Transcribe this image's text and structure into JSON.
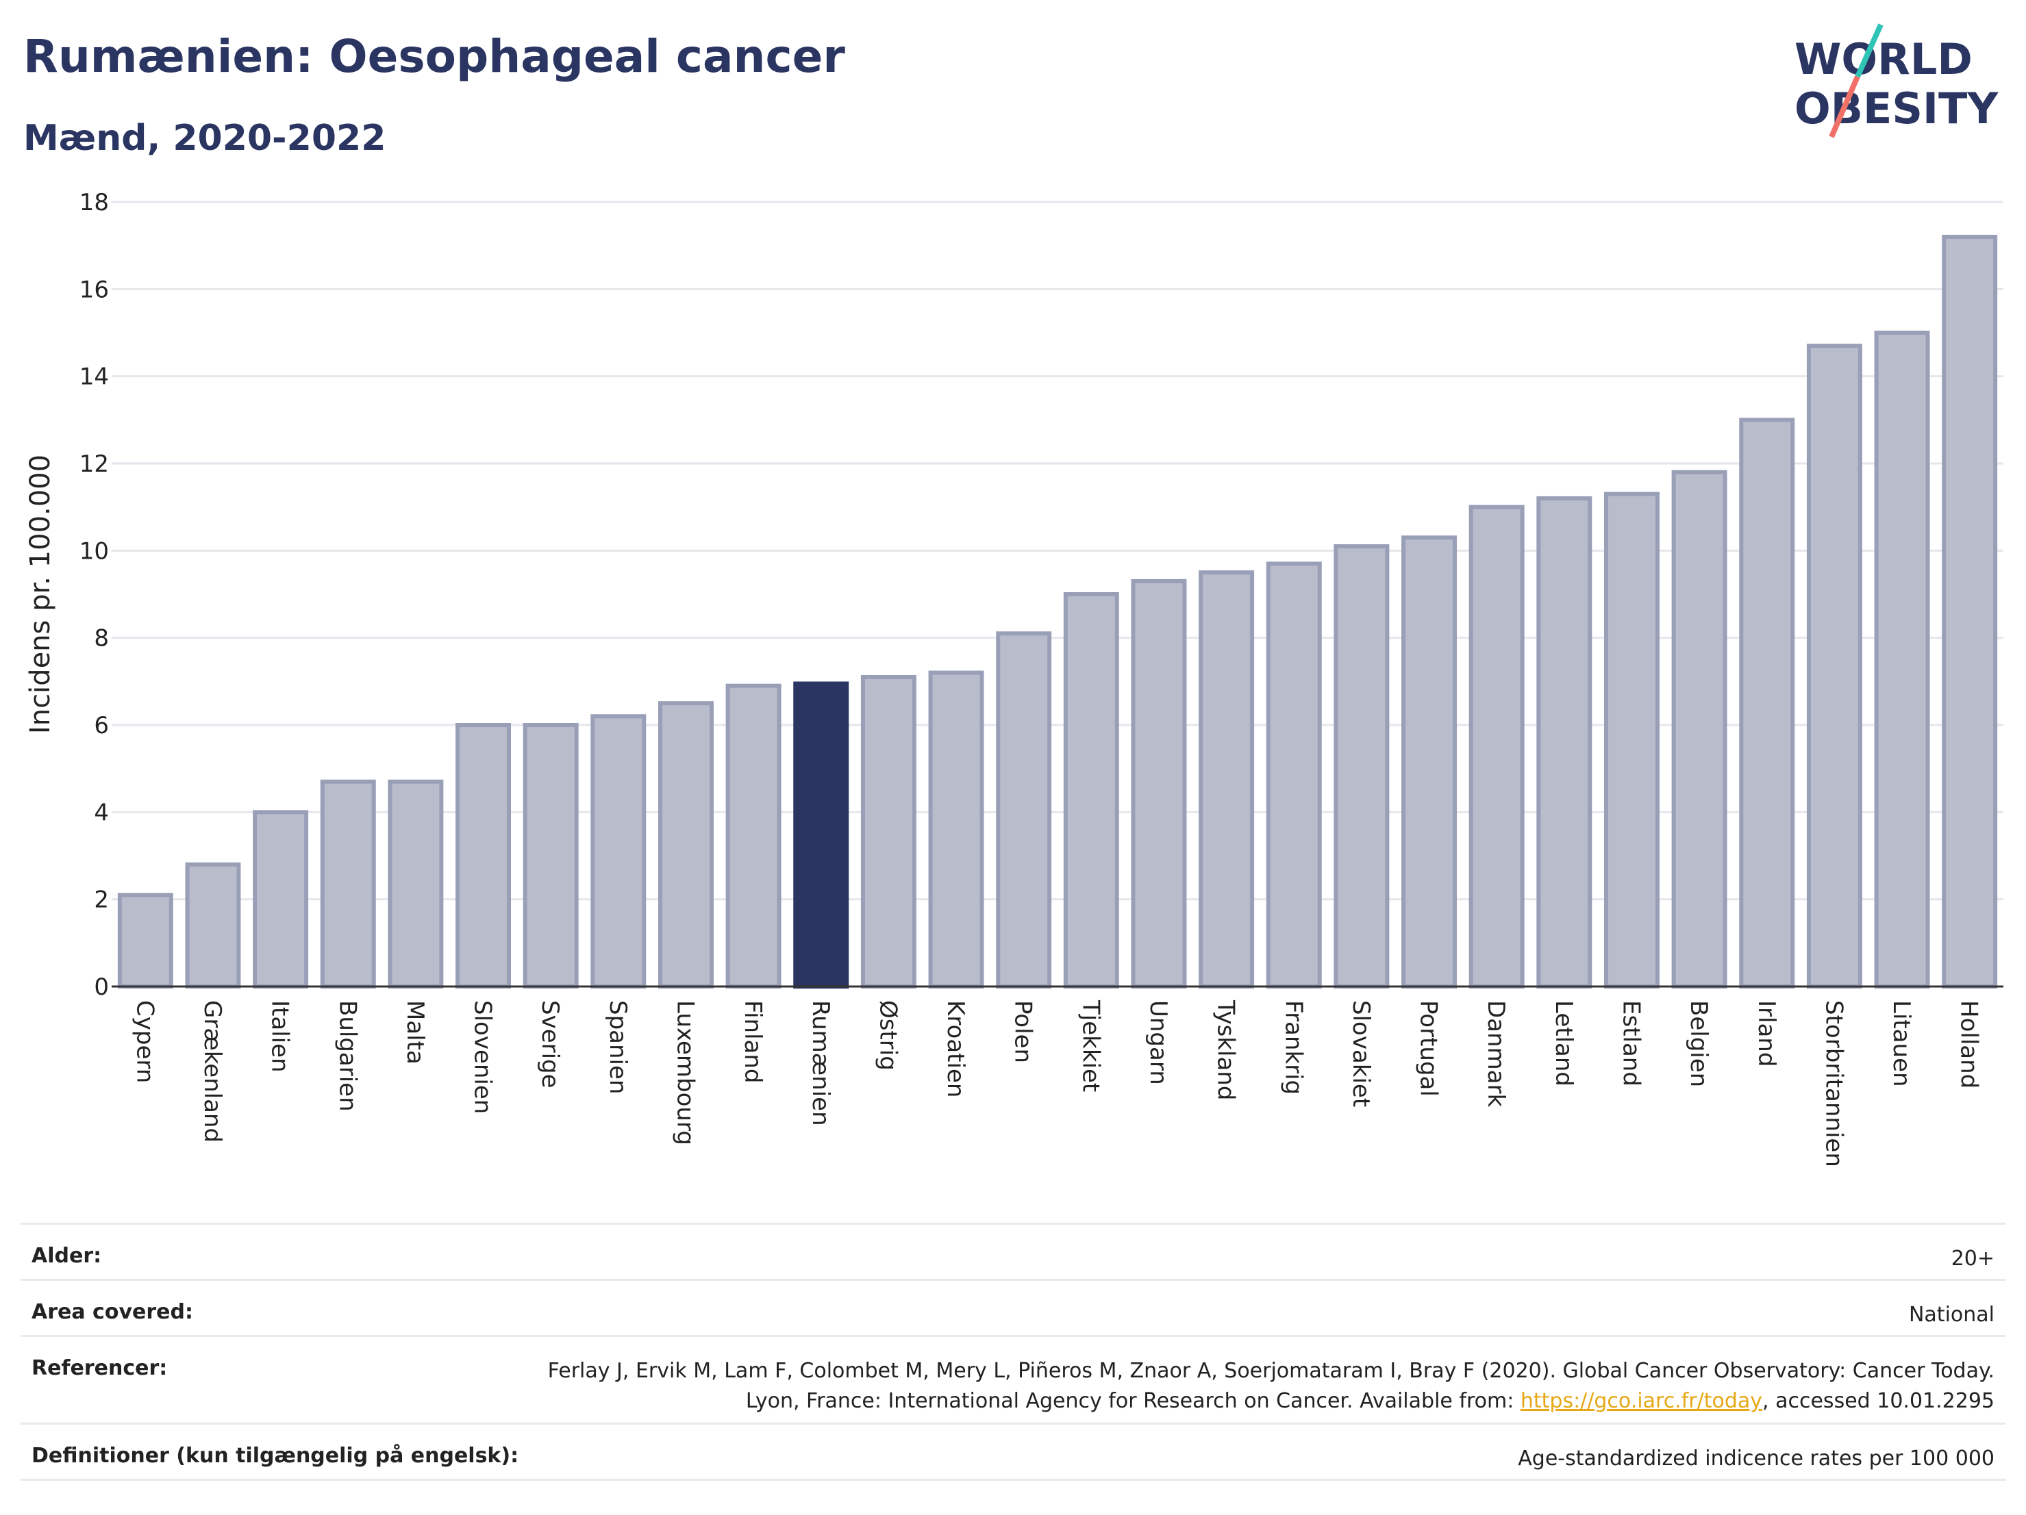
{
  "header": {
    "title": "Rumænien: Oesophageal cancer",
    "subtitle": "Mænd, 2020-2022"
  },
  "logo": {
    "line1": "WORLD",
    "line2": "OBESITY",
    "accent_teal": "#2ec4b6",
    "accent_coral": "#f07167",
    "text_color": "#2b3561"
  },
  "chart_data": {
    "type": "bar",
    "ylabel": "Incidens pr. 100.000",
    "ylim": [
      0,
      18
    ],
    "yticks": [
      0,
      2,
      4,
      6,
      8,
      10,
      12,
      14,
      16,
      18
    ],
    "grid": true,
    "highlight": "Rumænien",
    "colors": {
      "bar": "#b9bccb",
      "bar_border": "#9a9fb8",
      "highlight": "#2b3561"
    },
    "categories": [
      "Cypern",
      "Grækenland",
      "Italien",
      "Bulgarien",
      "Malta",
      "Slovenien",
      "Sverige",
      "Spanien",
      "Luxembourg",
      "Finland",
      "Rumænien",
      "Østrig",
      "Kroatien",
      "Polen",
      "Tjekkiet",
      "Ungarn",
      "Tyskland",
      "Frankrig",
      "Slovakiet",
      "Portugal",
      "Danmark",
      "Letland",
      "Estland",
      "Belgien",
      "Irland",
      "Storbritannien",
      "Litauen",
      "Holland"
    ],
    "values": [
      2.1,
      2.8,
      4.0,
      4.7,
      4.7,
      6.0,
      6.0,
      6.2,
      6.5,
      6.9,
      6.95,
      7.1,
      7.2,
      8.1,
      9.0,
      9.3,
      9.5,
      9.7,
      10.1,
      10.3,
      11.0,
      11.2,
      11.3,
      11.8,
      13.0,
      14.7,
      15.0,
      17.2
    ]
  },
  "info": {
    "age_label": "Alder:",
    "age_value": "20+",
    "area_label": "Area covered:",
    "area_value": "National",
    "ref_label": "Referencer:",
    "ref_text_1": "Ferlay J, Ervik M, Lam F, Colombet M, Mery L, Piñeros M, Znaor A, Soerjomataram I, Bray F (2020). Global Cancer Observatory: Cancer Today. Lyon, France: International Agency for Research on Cancer. Available from: ",
    "ref_link": "https://gco.iarc.fr/today",
    "ref_text_2": ", accessed 10.01.2295",
    "def_label": "Definitioner (kun tilgængelig på engelsk):",
    "def_value": "Age-standardized indicence rates per 100 000"
  }
}
